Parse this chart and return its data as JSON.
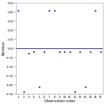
{
  "title": "",
  "xlabel": "Observation order",
  "ylabel": "Residual",
  "observations": [
    1,
    2,
    3,
    4,
    5,
    6,
    7,
    8,
    9,
    10,
    11,
    12,
    13,
    14,
    15,
    16,
    17
  ],
  "residuals": [
    0.42,
    -0.48,
    -0.05,
    -0.04,
    -0.42,
    -0.04,
    0.42,
    0.42,
    -0.04,
    -0.04,
    -0.04,
    -0.48,
    -0.04,
    -0.42,
    -0.04,
    0.42,
    -0.04
  ],
  "point_color": "#00008B",
  "hline_color": "#000080",
  "ylim": [
    -0.5,
    0.5
  ],
  "yticks": [
    0.5,
    0.4,
    0.3,
    0.2,
    0.1,
    0.0,
    -0.1,
    -0.2,
    -0.3,
    -0.4,
    -0.5
  ],
  "ytick_labels": [
    "0.50",
    "0.40",
    "0.30",
    "0.20",
    "0.10",
    "0.00",
    "-0.10",
    "-0.20",
    "-0.30",
    "-0.40",
    "-0.50"
  ],
  "xlim": [
    0.5,
    17.5
  ],
  "xticks": [
    1,
    2,
    3,
    4,
    5,
    6,
    7,
    8,
    9,
    10,
    11,
    12,
    13,
    14,
    15,
    16,
    17
  ],
  "bg_color": "#ffffff",
  "hline_y": 0.0,
  "marker_size": 2.5,
  "tick_fontsize": 3.0,
  "label_fontsize": 3.5,
  "linewidth_spine": 0.4,
  "hline_lw": 0.6
}
